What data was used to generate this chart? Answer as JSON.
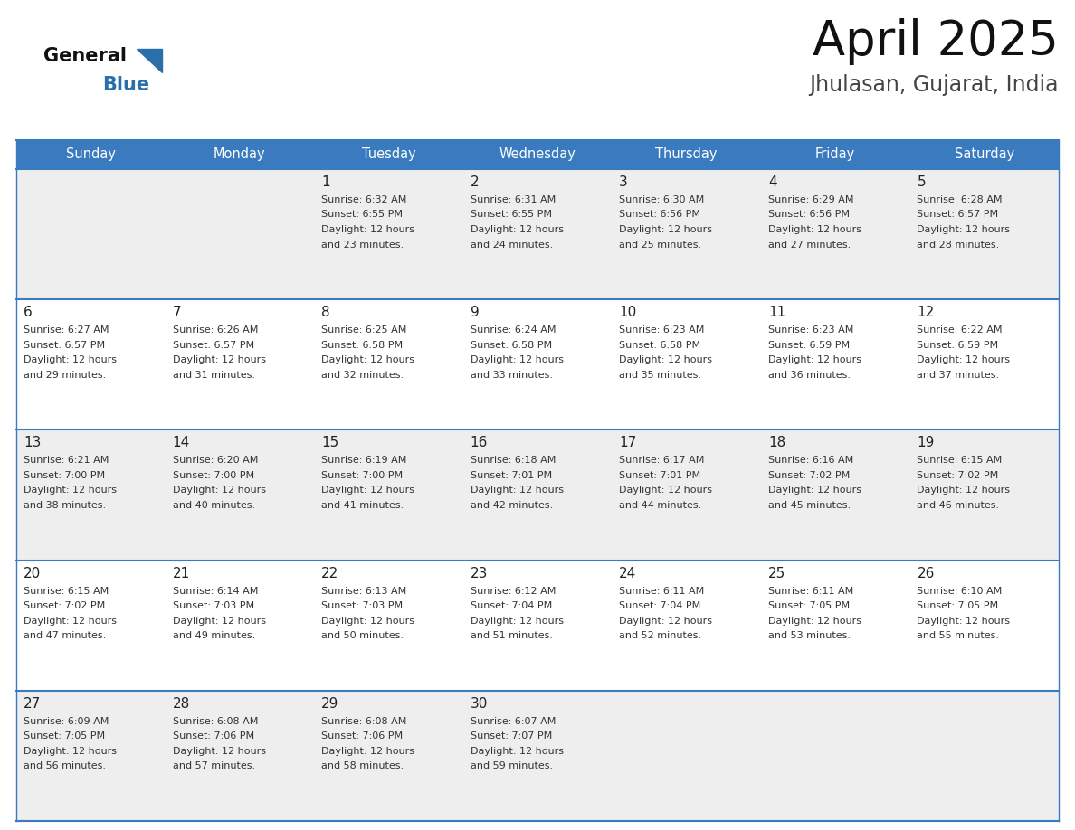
{
  "title": "April 2025",
  "subtitle": "Jhulasan, Gujarat, India",
  "days_of_week": [
    "Sunday",
    "Monday",
    "Tuesday",
    "Wednesday",
    "Thursday",
    "Friday",
    "Saturday"
  ],
  "header_bg": "#3a7bbf",
  "header_text": "#ffffff",
  "cell_bg_light": "#eeeeee",
  "cell_bg_white": "#ffffff",
  "cell_border_color": "#3a7bbf",
  "day_num_color": "#222222",
  "info_color": "#333333",
  "title_color": "#111111",
  "subtitle_color": "#444444",
  "logo_general_color": "#111111",
  "logo_blue_color": "#2a6faa",
  "weeks": [
    [
      {
        "day": null,
        "sunrise": null,
        "sunset": null,
        "daylight_min": null
      },
      {
        "day": null,
        "sunrise": null,
        "sunset": null,
        "daylight_min": null
      },
      {
        "day": 1,
        "sunrise": "6:32 AM",
        "sunset": "6:55 PM",
        "daylight_min": "23 minutes."
      },
      {
        "day": 2,
        "sunrise": "6:31 AM",
        "sunset": "6:55 PM",
        "daylight_min": "24 minutes."
      },
      {
        "day": 3,
        "sunrise": "6:30 AM",
        "sunset": "6:56 PM",
        "daylight_min": "25 minutes."
      },
      {
        "day": 4,
        "sunrise": "6:29 AM",
        "sunset": "6:56 PM",
        "daylight_min": "27 minutes."
      },
      {
        "day": 5,
        "sunrise": "6:28 AM",
        "sunset": "6:57 PM",
        "daylight_min": "28 minutes."
      }
    ],
    [
      {
        "day": 6,
        "sunrise": "6:27 AM",
        "sunset": "6:57 PM",
        "daylight_min": "29 minutes."
      },
      {
        "day": 7,
        "sunrise": "6:26 AM",
        "sunset": "6:57 PM",
        "daylight_min": "31 minutes."
      },
      {
        "day": 8,
        "sunrise": "6:25 AM",
        "sunset": "6:58 PM",
        "daylight_min": "32 minutes."
      },
      {
        "day": 9,
        "sunrise": "6:24 AM",
        "sunset": "6:58 PM",
        "daylight_min": "33 minutes."
      },
      {
        "day": 10,
        "sunrise": "6:23 AM",
        "sunset": "6:58 PM",
        "daylight_min": "35 minutes."
      },
      {
        "day": 11,
        "sunrise": "6:23 AM",
        "sunset": "6:59 PM",
        "daylight_min": "36 minutes."
      },
      {
        "day": 12,
        "sunrise": "6:22 AM",
        "sunset": "6:59 PM",
        "daylight_min": "37 minutes."
      }
    ],
    [
      {
        "day": 13,
        "sunrise": "6:21 AM",
        "sunset": "7:00 PM",
        "daylight_min": "38 minutes."
      },
      {
        "day": 14,
        "sunrise": "6:20 AM",
        "sunset": "7:00 PM",
        "daylight_min": "40 minutes."
      },
      {
        "day": 15,
        "sunrise": "6:19 AM",
        "sunset": "7:00 PM",
        "daylight_min": "41 minutes."
      },
      {
        "day": 16,
        "sunrise": "6:18 AM",
        "sunset": "7:01 PM",
        "daylight_min": "42 minutes."
      },
      {
        "day": 17,
        "sunrise": "6:17 AM",
        "sunset": "7:01 PM",
        "daylight_min": "44 minutes."
      },
      {
        "day": 18,
        "sunrise": "6:16 AM",
        "sunset": "7:02 PM",
        "daylight_min": "45 minutes."
      },
      {
        "day": 19,
        "sunrise": "6:15 AM",
        "sunset": "7:02 PM",
        "daylight_min": "46 minutes."
      }
    ],
    [
      {
        "day": 20,
        "sunrise": "6:15 AM",
        "sunset": "7:02 PM",
        "daylight_min": "47 minutes."
      },
      {
        "day": 21,
        "sunrise": "6:14 AM",
        "sunset": "7:03 PM",
        "daylight_min": "49 minutes."
      },
      {
        "day": 22,
        "sunrise": "6:13 AM",
        "sunset": "7:03 PM",
        "daylight_min": "50 minutes."
      },
      {
        "day": 23,
        "sunrise": "6:12 AM",
        "sunset": "7:04 PM",
        "daylight_min": "51 minutes."
      },
      {
        "day": 24,
        "sunrise": "6:11 AM",
        "sunset": "7:04 PM",
        "daylight_min": "52 minutes."
      },
      {
        "day": 25,
        "sunrise": "6:11 AM",
        "sunset": "7:05 PM",
        "daylight_min": "53 minutes."
      },
      {
        "day": 26,
        "sunrise": "6:10 AM",
        "sunset": "7:05 PM",
        "daylight_min": "55 minutes."
      }
    ],
    [
      {
        "day": 27,
        "sunrise": "6:09 AM",
        "sunset": "7:05 PM",
        "daylight_min": "56 minutes."
      },
      {
        "day": 28,
        "sunrise": "6:08 AM",
        "sunset": "7:06 PM",
        "daylight_min": "57 minutes."
      },
      {
        "day": 29,
        "sunrise": "6:08 AM",
        "sunset": "7:06 PM",
        "daylight_min": "58 minutes."
      },
      {
        "day": 30,
        "sunrise": "6:07 AM",
        "sunset": "7:07 PM",
        "daylight_min": "59 minutes."
      },
      {
        "day": null,
        "sunrise": null,
        "sunset": null,
        "daylight_min": null
      },
      {
        "day": null,
        "sunrise": null,
        "sunset": null,
        "daylight_min": null
      },
      {
        "day": null,
        "sunrise": null,
        "sunset": null,
        "daylight_min": null
      }
    ]
  ]
}
